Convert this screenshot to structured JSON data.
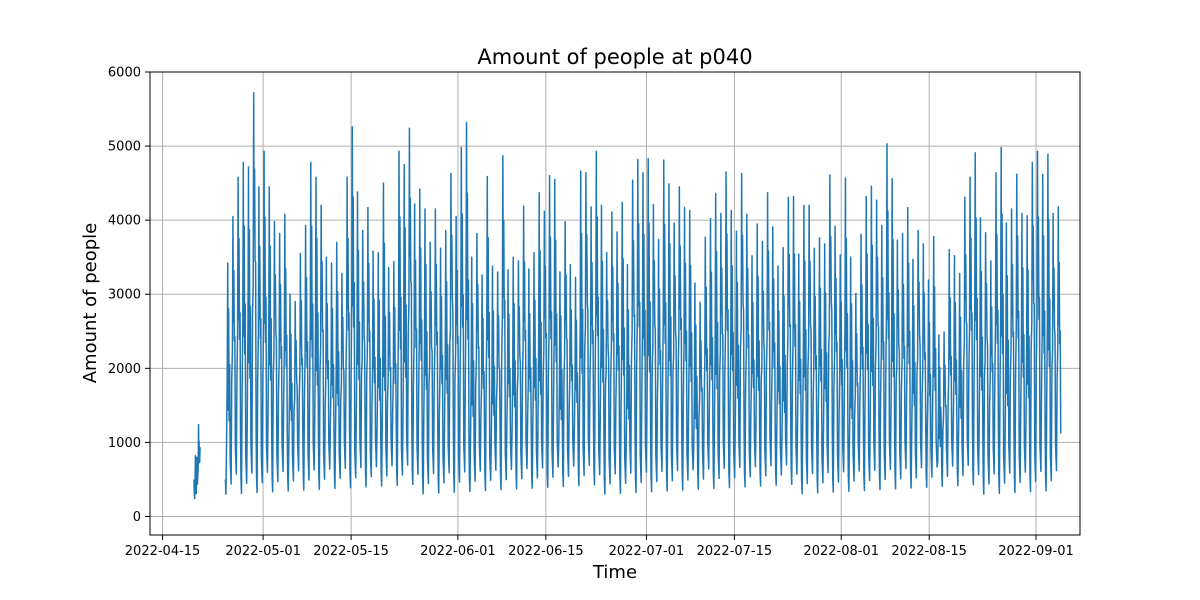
{
  "chart_data": {
    "type": "line",
    "title": "Amount of people at p040",
    "xlabel": "Time",
    "ylabel": "Amount of people",
    "xlim": [
      "2022-04-13",
      "2022-09-08"
    ],
    "ylim": [
      -250,
      6000
    ],
    "grid": true,
    "line_color": "#1f77b4",
    "x_ticks": [
      "2022-04-15",
      "2022-05-01",
      "2022-05-15",
      "2022-06-01",
      "2022-06-15",
      "2022-07-01",
      "2022-07-15",
      "2022-08-01",
      "2022-08-15",
      "2022-09-01"
    ],
    "y_ticks": [
      0,
      1000,
      2000,
      3000,
      4000,
      5000,
      6000
    ],
    "series": [
      {
        "segments": [
          {
            "start": "2022-04-20",
            "end": "2022-04-21",
            "peaks": [
              820,
              1240
            ]
          },
          {
            "start": "2022-04-25",
            "end": "2022-09-05",
            "peaks": [
              3420,
              4050,
              4580,
              4780,
              4720,
              5720,
              4450,
              4930,
              4450,
              3980,
              3820,
              4080,
              3000,
              2900,
              3550,
              3930,
              4780,
              4580,
              4200,
              3500,
              3420,
              3700,
              3280,
              4580,
              5260,
              4380,
              3860,
              4170,
              3580,
              3560,
              4500,
              3360,
              3440,
              4930,
              4750,
              5240,
              4220,
              4420,
              4150,
              3700,
              4150,
              3620,
              3860,
              4630,
              4050,
              4980,
              5320,
              3500,
              3820,
              3260,
              4590,
              3380,
              3300,
              4870,
              3330,
              3500,
              3450,
              4190,
              3340,
              3560,
              4370,
              4120,
              4600,
              4550,
              3300,
              3980,
              3400,
              3230,
              4660,
              4640,
              4180,
              4930,
              4200,
              3560,
              4110,
              3840,
              4240,
              3400,
              4540,
              4820,
              4640,
              4830,
              4210,
              3740,
              4810,
              4490,
              3960,
              4450,
              4170,
              4130,
              3150,
              2890,
              3770,
              4020,
              4360,
              4090,
              4650,
              4130,
              3850,
              4630,
              4080,
              3520,
              3950,
              3710,
              4370,
              3910,
              3380,
              3630,
              4310,
              4320,
              3540,
              4200,
              4200,
              3620,
              3760,
              3680,
              4610,
              3920,
              3530,
              4570,
              3500,
              3010,
              3810,
              4320,
              4460,
              4270,
              3930,
              5030,
              4560,
              3730,
              3820,
              4170,
              3470,
              3860,
              3680,
              3190,
              3780,
              2450,
              2490,
              3600,
              3520,
              3280,
              4310,
              4580,
              4910,
              4030,
              3830,
              3450,
              4640,
              4980,
              3960,
              4150,
              4620,
              4090,
              4060,
              4780,
              4930,
              4620,
              4890,
              4090,
              4180
            ]
          }
        ]
      }
    ]
  }
}
